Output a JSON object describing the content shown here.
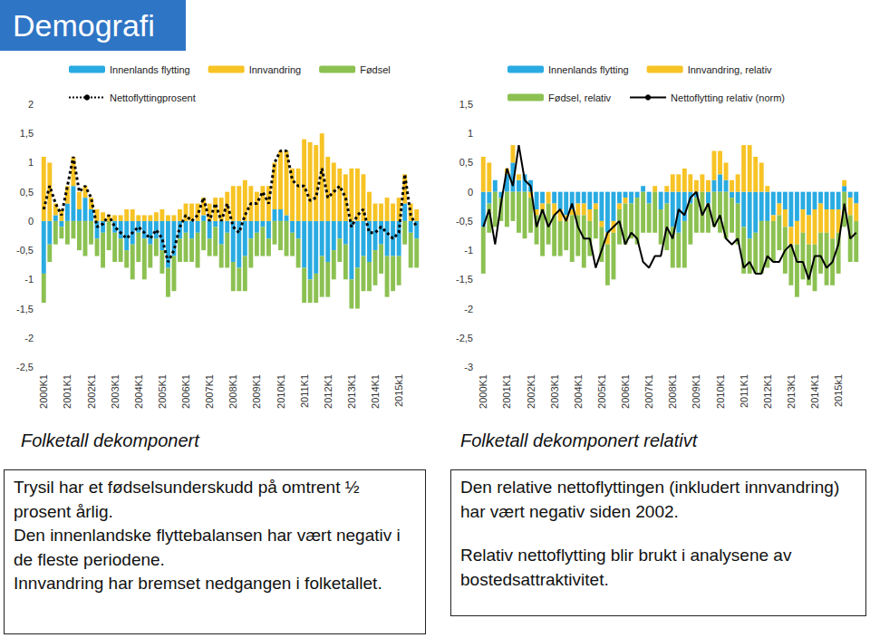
{
  "header": {
    "title": "Demografi"
  },
  "chart_data": [
    {
      "type": "bar",
      "title": "Folketall dekomponert",
      "stacked": true,
      "legend": "top",
      "grid": false,
      "categories": [
        "2000K1",
        null,
        null,
        null,
        "2001K1",
        null,
        null,
        null,
        "2002K1",
        null,
        null,
        null,
        "2003K1",
        null,
        null,
        null,
        "2004K1",
        null,
        null,
        null,
        "2005K1",
        null,
        null,
        null,
        "2006K1",
        null,
        null,
        null,
        "2007K1",
        null,
        null,
        null,
        "2008K1",
        null,
        null,
        null,
        "2009K1",
        null,
        null,
        null,
        "2010K1",
        null,
        null,
        null,
        "2011K1",
        null,
        null,
        null,
        "2012K1",
        null,
        null,
        null,
        "2013K1",
        null,
        null,
        null,
        "2014K1",
        null,
        null,
        null,
        "2015k1",
        null,
        null,
        null
      ],
      "ylim": [
        -2.5,
        2
      ],
      "yticks": [
        {
          "value": -2.5,
          "label": "-2,5"
        },
        -2,
        {
          "value": -1.5,
          "label": "-1,5"
        },
        -1,
        {
          "value": -0.5,
          "label": "-0,5"
        },
        0,
        {
          "value": 0.5,
          "label": "0,5"
        },
        1,
        {
          "value": 1.5,
          "label": "1,5"
        },
        2
      ],
      "series": [
        {
          "name": "Innenlands flytting",
          "type": "bar",
          "color": "#29abe2",
          "values": [
            -0.9,
            -0.4,
            0.1,
            -0.1,
            0.3,
            0.6,
            0.2,
            0.4,
            0.2,
            -0.3,
            -0.2,
            0.0,
            -0.2,
            -0.3,
            -0.5,
            -0.4,
            -0.2,
            -0.3,
            -0.4,
            -0.3,
            -0.5,
            -0.8,
            -0.6,
            -0.3,
            -0.2,
            -0.3,
            -0.2,
            0.1,
            -0.3,
            -0.1,
            -0.4,
            -0.2,
            -0.7,
            -0.8,
            -0.6,
            -0.3,
            -0.2,
            -0.1,
            -0.3,
            0.2,
            0.2,
            0.1,
            -0.2,
            -0.3,
            -0.8,
            -1.0,
            -0.9,
            -0.6,
            -0.7,
            -0.5,
            -0.3,
            -0.4,
            -1.0,
            -0.8,
            -0.6,
            -0.7,
            -0.5,
            -0.4,
            -0.6,
            -0.6,
            -0.6,
            0.3,
            -0.2,
            -0.3
          ]
        },
        {
          "name": "Innvandring",
          "type": "bar",
          "color": "#f7c325",
          "values": [
            1.1,
            1.0,
            0.2,
            0.2,
            0.3,
            0.5,
            0.3,
            0.2,
            0.2,
            0.2,
            0.15,
            0.1,
            0.1,
            0.1,
            0.2,
            0.2,
            0.1,
            0.1,
            0.1,
            0.15,
            0.2,
            0.1,
            0.1,
            0.2,
            0.3,
            0.3,
            0.3,
            0.3,
            0.3,
            0.4,
            0.4,
            0.5,
            0.6,
            0.6,
            0.7,
            0.6,
            0.5,
            0.6,
            0.6,
            0.8,
            1.0,
            1.1,
            0.9,
            0.9,
            1.4,
            1.35,
            1.3,
            1.5,
            1.1,
            1.0,
            0.9,
            0.8,
            0.9,
            0.9,
            0.8,
            0.5,
            0.3,
            0.3,
            0.4,
            0.3,
            0.4,
            0.5,
            0.3,
            0.2
          ]
        },
        {
          "name": "Fødsel",
          "type": "bar",
          "color": "#8cc152",
          "values": [
            -0.5,
            -0.3,
            -0.4,
            -0.2,
            -0.4,
            -0.3,
            -0.5,
            -0.6,
            -0.4,
            -0.3,
            -0.6,
            -0.5,
            -0.5,
            -0.4,
            -0.3,
            -0.6,
            -0.5,
            -0.7,
            -0.4,
            -0.3,
            -0.4,
            -0.5,
            -0.6,
            -0.4,
            -0.5,
            -0.4,
            -0.6,
            -0.5,
            -0.3,
            -0.5,
            -0.4,
            -0.6,
            -0.5,
            -0.4,
            -0.6,
            -0.5,
            -0.4,
            -0.5,
            -0.3,
            -0.4,
            -0.5,
            -0.6,
            -0.4,
            -0.5,
            -0.6,
            -0.4,
            -0.5,
            -0.7,
            -0.6,
            -0.5,
            -0.4,
            -0.6,
            -0.5,
            -0.7,
            -0.6,
            -0.5,
            -0.6,
            -0.5,
            -0.7,
            -0.6,
            -0.5,
            -0.4,
            -0.6,
            -0.5
          ]
        },
        {
          "name": "Nettoflyttingprosent",
          "type": "line",
          "line_style": "dotted",
          "color": "#000000",
          "values": [
            0.2,
            0.6,
            0.3,
            0.1,
            0.6,
            1.1,
            0.5,
            0.6,
            0.4,
            -0.1,
            -0.05,
            0.1,
            -0.1,
            -0.2,
            -0.3,
            -0.2,
            -0.1,
            -0.2,
            -0.3,
            -0.15,
            -0.3,
            -0.7,
            -0.5,
            -0.1,
            0.1,
            0.0,
            0.1,
            0.4,
            0.0,
            0.3,
            0.0,
            0.3,
            -0.1,
            -0.2,
            0.1,
            0.3,
            0.3,
            0.5,
            0.3,
            1.0,
            1.2,
            1.2,
            0.7,
            0.6,
            0.6,
            0.35,
            0.4,
            0.9,
            0.4,
            0.5,
            0.6,
            0.4,
            -0.1,
            0.1,
            0.2,
            -0.2,
            -0.2,
            -0.1,
            -0.2,
            -0.3,
            -0.2,
            0.8,
            0.1,
            -0.1
          ]
        }
      ]
    },
    {
      "type": "bar",
      "title": "Folketall dekomponert relativt",
      "stacked": true,
      "legend": "top",
      "grid": false,
      "categories": [
        "2000K1",
        null,
        null,
        null,
        "2001K1",
        null,
        null,
        null,
        "2002K1",
        null,
        null,
        null,
        "2003K1",
        null,
        null,
        null,
        "2004K1",
        null,
        null,
        null,
        "2005K1",
        null,
        null,
        null,
        "2006K1",
        null,
        null,
        null,
        "2007K1",
        null,
        null,
        null,
        "2008K1",
        null,
        null,
        null,
        "2009K1",
        null,
        null,
        null,
        "2010K1",
        null,
        null,
        null,
        "2011K1",
        null,
        null,
        null,
        "2012K1",
        null,
        null,
        null,
        "2013K1",
        null,
        null,
        null,
        "2014K1",
        null,
        null,
        null,
        "2015k1",
        null,
        null,
        null
      ],
      "ylim": [
        -3,
        1.5
      ],
      "yticks": [
        -3,
        {
          "value": -2.5,
          "label": "-2,5"
        },
        -2,
        {
          "value": -1.5,
          "label": "-1,5"
        },
        -1,
        {
          "value": -0.5,
          "label": "-0,5"
        },
        0,
        {
          "value": 0.5,
          "label": "0,5"
        },
        1,
        {
          "value": 1.5,
          "label": "1,5"
        }
      ],
      "series": [
        {
          "name": "Innenlands flytting",
          "type": "bar",
          "color": "#29abe2",
          "values": [
            -0.6,
            -0.2,
            0.2,
            -0.1,
            0.3,
            0.5,
            0.2,
            0.3,
            0.2,
            -0.3,
            -0.2,
            0.0,
            -0.2,
            -0.3,
            -0.4,
            -0.3,
            -0.2,
            -0.2,
            -0.3,
            -0.2,
            -0.5,
            -0.7,
            -0.5,
            -0.2,
            -0.1,
            -0.2,
            -0.1,
            0.1,
            -0.2,
            0.0,
            -0.3,
            -0.2,
            -0.6,
            -0.7,
            -0.5,
            -0.2,
            -0.1,
            0.0,
            -0.2,
            0.2,
            0.3,
            0.2,
            -0.1,
            -0.2,
            -0.6,
            -0.8,
            -0.7,
            -0.5,
            -0.5,
            -0.4,
            -0.2,
            -0.3,
            -0.6,
            -0.5,
            -0.3,
            -0.4,
            -0.3,
            -0.2,
            -0.3,
            -0.3,
            -0.3,
            0.1,
            -0.1,
            -0.2
          ]
        },
        {
          "name": "Innvandring, relativ",
          "type": "bar",
          "color": "#f7c325",
          "values": [
            0.6,
            0.5,
            0.0,
            0.0,
            0.1,
            0.3,
            0.1,
            0.0,
            -0.1,
            -0.1,
            -0.1,
            -0.2,
            -0.2,
            -0.2,
            -0.1,
            -0.1,
            -0.2,
            -0.2,
            -0.2,
            -0.1,
            -0.1,
            -0.2,
            -0.2,
            -0.1,
            -0.1,
            0.0,
            0.0,
            0.0,
            0.0,
            0.1,
            0.0,
            0.1,
            0.3,
            0.3,
            0.4,
            0.3,
            0.2,
            0.3,
            0.2,
            0.5,
            0.4,
            0.3,
            0.2,
            0.3,
            0.8,
            0.8,
            0.6,
            0.5,
            0.1,
            -0.1,
            -0.2,
            -0.3,
            -0.3,
            -0.4,
            -0.4,
            -0.5,
            -0.6,
            -0.5,
            -0.4,
            -0.5,
            -0.4,
            0.1,
            -0.3,
            -0.3
          ]
        },
        {
          "name": "Fødsel, relativ",
          "type": "bar",
          "color": "#8cc152",
          "values": [
            -0.8,
            -0.5,
            -0.6,
            -0.4,
            -0.6,
            -0.5,
            -0.7,
            -0.8,
            -0.6,
            -0.5,
            -0.8,
            -0.7,
            -0.7,
            -0.6,
            -0.5,
            -0.8,
            -0.7,
            -0.9,
            -0.6,
            -0.5,
            -0.6,
            -0.7,
            -0.8,
            -0.6,
            -0.7,
            -0.6,
            -0.8,
            -0.7,
            -0.5,
            -0.7,
            -0.6,
            -0.8,
            -0.7,
            -0.6,
            -0.8,
            -0.7,
            -0.6,
            -0.7,
            -0.5,
            -0.6,
            -0.7,
            -0.8,
            -0.6,
            -0.7,
            -0.8,
            -0.6,
            -0.7,
            -0.9,
            -0.8,
            -0.7,
            -0.6,
            -0.8,
            -0.7,
            -0.9,
            -0.8,
            -0.7,
            -0.8,
            -0.7,
            -0.9,
            -0.8,
            -0.7,
            -0.6,
            -0.8,
            -0.7
          ]
        },
        {
          "name": "Nettoflytting relativ (norm)",
          "type": "line",
          "line_style": "solid",
          "color": "#000000",
          "values": [
            -0.6,
            -0.3,
            -0.9,
            -0.2,
            0.4,
            0.1,
            0.8,
            0.2,
            0.1,
            -0.6,
            -0.3,
            -0.6,
            -0.4,
            -0.3,
            -0.5,
            -0.2,
            -0.6,
            -0.8,
            -0.8,
            -1.3,
            -1.0,
            -0.7,
            -0.6,
            -0.5,
            -0.9,
            -0.7,
            -0.8,
            -1.2,
            -1.3,
            -1.1,
            -1.1,
            -0.6,
            -0.8,
            -0.3,
            -0.4,
            -0.1,
            0.0,
            -0.4,
            -0.2,
            -0.6,
            -0.4,
            -0.8,
            -0.9,
            -0.8,
            -1.3,
            -1.2,
            -1.4,
            -1.4,
            -1.1,
            -1.2,
            -1.2,
            -1.0,
            -0.9,
            -1.2,
            -1.2,
            -1.5,
            -1.1,
            -1.1,
            -1.3,
            -1.2,
            -0.9,
            -0.2,
            -0.8,
            -0.7
          ]
        }
      ]
    }
  ],
  "text_boxes": [
    {
      "paragraphs": [
        "Trysil har et fødselsunderskudd på omtrent ½ prosent årlig.",
        "Den innenlandske flyttebalansen har vært negativ i de fleste periodene.",
        "Innvandring har bremset nedgangen i folketallet."
      ]
    },
    {
      "paragraphs": [
        "Den relative nettoflyttingen (inkludert innvandring) har vært negativ siden 2002.",
        "Relativ nettoflytting blir brukt i analysene av bostedsattraktivitet."
      ]
    }
  ]
}
